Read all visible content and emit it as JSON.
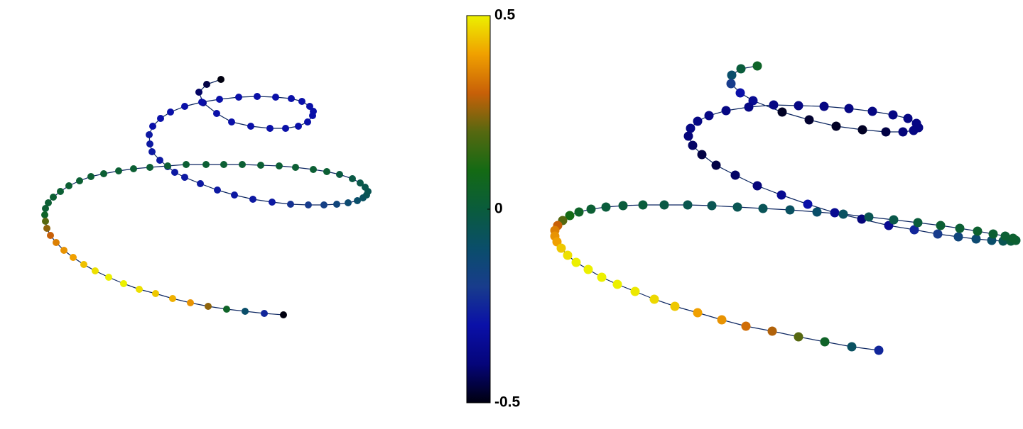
{
  "chart_data": [
    {
      "type": "scatter",
      "line_color": "#0b2560",
      "xlim": [
        0,
        500
      ],
      "ylim": [
        0,
        380
      ],
      "x": [
        271,
        251,
        240,
        246,
        265,
        286,
        313,
        340,
        362,
        380,
        393,
        400,
        401,
        396,
        385,
        370,
        348,
        322,
        296,
        269,
        244,
        220,
        200,
        186,
        175,
        170,
        171,
        174,
        185,
        196,
        206,
        220,
        242,
        266,
        290,
        316,
        343,
        369,
        394,
        416,
        434,
        450,
        463,
        471,
        476,
        478,
        474,
        467,
        456,
        438,
        420,
        401,
        376,
        353,
        327,
        301,
        275,
        250,
        222,
        196,
        171,
        148,
        127,
        106,
        88,
        72,
        57,
        45,
        35,
        28,
        24,
        23,
        24,
        26,
        31,
        39,
        50,
        63,
        78,
        94,
        113,
        134,
        156,
        179,
        203,
        228,
        253,
        279,
        305,
        332,
        359
      ],
      "y": [
        358,
        351,
        340,
        325,
        310,
        298,
        292,
        289,
        289,
        292,
        298,
        307,
        313,
        320,
        327,
        331,
        333,
        334,
        333,
        330,
        326,
        320,
        312,
        303,
        292,
        280,
        267,
        256,
        244,
        235,
        227,
        220,
        211,
        202,
        195,
        189,
        185,
        182,
        181,
        181,
        182,
        184,
        187,
        191,
        195,
        200,
        206,
        212,
        218,
        224,
        228,
        231,
        234,
        236,
        237,
        238,
        238,
        238,
        238,
        236,
        234,
        232,
        229,
        225,
        221,
        215,
        208,
        200,
        192,
        184,
        176,
        167,
        158,
        148,
        138,
        128,
        117,
        107,
        97,
        88,
        79,
        70,
        62,
        56,
        49,
        43,
        38,
        34,
        31,
        28,
        26
      ],
      "values": [
        -0.5,
        -0.45,
        -0.42,
        -0.35,
        -0.3,
        -0.3,
        -0.3,
        -0.3,
        -0.3,
        -0.3,
        -0.3,
        -0.3,
        -0.3,
        -0.3,
        -0.3,
        -0.3,
        -0.3,
        -0.3,
        -0.3,
        -0.3,
        -0.3,
        -0.3,
        -0.3,
        -0.3,
        -0.3,
        -0.28,
        -0.28,
        -0.28,
        -0.28,
        -0.28,
        -0.28,
        -0.28,
        -0.28,
        -0.28,
        -0.28,
        -0.28,
        -0.28,
        -0.22,
        -0.2,
        -0.18,
        -0.15,
        -0.12,
        -0.1,
        -0.08,
        -0.06,
        -0.05,
        -0.04,
        -0.03,
        -0.02,
        -0.01,
        0.02,
        0.02,
        0.02,
        0.02,
        0.02,
        0.02,
        0.02,
        0.02,
        0.02,
        0.02,
        0.02,
        0.02,
        0.02,
        0.02,
        0.02,
        0.02,
        0.02,
        0.02,
        0.02,
        0.02,
        0.02,
        0.05,
        0.2,
        0.25,
        0.3,
        0.35,
        0.38,
        0.4,
        0.44,
        0.48,
        0.5,
        0.5,
        0.48,
        0.45,
        0.42,
        0.38,
        0.25,
        0.05,
        -0.1,
        -0.25,
        -0.5
      ]
    },
    {
      "type": "colorbar",
      "clim": [
        -0.5,
        0.5
      ],
      "ticks": [
        -0.5,
        0,
        0.5
      ],
      "colormap": [
        "#000010",
        "#05057a",
        "#0a10a8",
        "#183c8c",
        "#0a4e6a",
        "#0a5c3c",
        "#146a14",
        "#566810",
        "#c86008",
        "#f0a000",
        "#ecf000"
      ]
    },
    {
      "type": "scatter",
      "line_color": "#0b2560",
      "xlim": [
        0,
        700
      ],
      "ylim": [
        0,
        430
      ],
      "x": [
        326,
        303,
        290,
        289,
        302,
        320,
        361,
        399,
        437,
        474,
        507,
        531,
        546,
        553,
        550,
        538,
        517,
        488,
        455,
        420,
        384,
        349,
        314,
        282,
        258,
        242,
        232,
        229,
        235,
        248,
        268,
        295,
        326,
        360,
        397,
        435,
        473,
        511,
        547,
        580,
        609,
        634,
        656,
        672,
        683,
        690,
        686,
        675,
        658,
        636,
        611,
        584,
        552,
        518,
        483,
        447,
        410,
        372,
        334,
        298,
        262,
        228,
        195,
        165,
        137,
        113,
        92,
        75,
        62,
        52,
        45,
        41,
        41,
        44,
        50,
        59,
        71,
        88,
        107,
        129,
        154,
        181,
        210,
        242,
        276,
        310,
        347,
        384,
        421,
        459,
        497
      ],
      "y": [
        417,
        413,
        404,
        392,
        379,
        368,
        352,
        341,
        332,
        327,
        324,
        324,
        326,
        330,
        336,
        343,
        348,
        353,
        357,
        360,
        361,
        362,
        359,
        354,
        347,
        339,
        329,
        318,
        305,
        292,
        277,
        263,
        248,
        235,
        222,
        210,
        201,
        192,
        186,
        180,
        176,
        173,
        171,
        170,
        170,
        171,
        174,
        177,
        180,
        184,
        188,
        192,
        196,
        200,
        204,
        208,
        211,
        214,
        216,
        218,
        220,
        221,
        221,
        221,
        220,
        218,
        215,
        211,
        206,
        199,
        192,
        185,
        177,
        169,
        160,
        150,
        140,
        130,
        119,
        109,
        99,
        88,
        78,
        69,
        59,
        50,
        43,
        35,
        28,
        21,
        16
      ],
      "values": [
        0.05,
        0,
        -0.1,
        -0.2,
        -0.3,
        -0.35,
        -0.48,
        -0.47,
        -0.48,
        -0.48,
        -0.45,
        -0.4,
        -0.38,
        -0.38,
        -0.38,
        -0.38,
        -0.38,
        -0.38,
        -0.38,
        -0.38,
        -0.38,
        -0.38,
        -0.38,
        -0.38,
        -0.38,
        -0.38,
        -0.38,
        -0.4,
        -0.42,
        -0.45,
        -0.45,
        -0.42,
        -0.4,
        -0.35,
        -0.3,
        -0.35,
        -0.4,
        -0.35,
        -0.25,
        -0.2,
        -0.15,
        -0.12,
        -0.1,
        -0.05,
        0,
        0.02,
        0.03,
        0.02,
        0.02,
        0.03,
        0.02,
        0.02,
        0,
        -0.03,
        -0.05,
        -0.08,
        -0.1,
        -0.08,
        -0.06,
        -0.05,
        -0.05,
        -0.04,
        -0.02,
        0,
        0,
        0,
        0.02,
        0.05,
        0.1,
        0.2,
        0.3,
        0.35,
        0.38,
        0.4,
        0.45,
        0.48,
        0.5,
        0.5,
        0.5,
        0.5,
        0.49,
        0.47,
        0.45,
        0.4,
        0.38,
        0.32,
        0.28,
        0.2,
        0.05,
        -0.08,
        -0.25
      ]
    }
  ]
}
